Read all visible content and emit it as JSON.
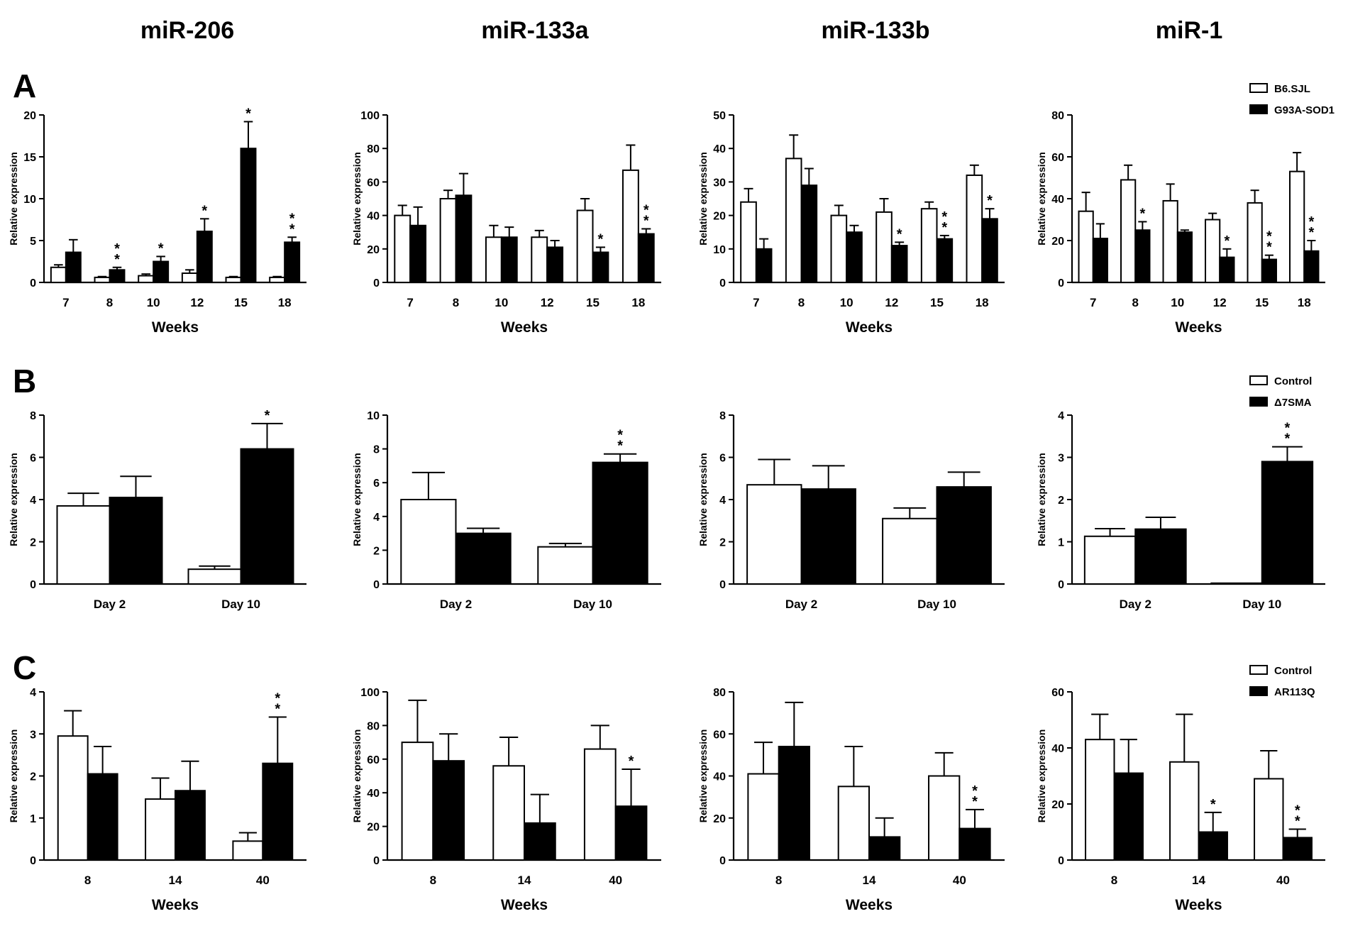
{
  "column_titles": [
    "miR-206",
    "miR-133a",
    "miR-133b",
    "miR-1"
  ],
  "row_labels": [
    "A",
    "B",
    "C"
  ],
  "legends": [
    {
      "items": [
        "B6.SJL",
        "G93A-SOD1"
      ]
    },
    {
      "items": [
        "Control",
        "Δ7SMA"
      ]
    },
    {
      "items": [
        "Control",
        "AR113Q"
      ]
    }
  ],
  "colors": {
    "series_open": "#ffffff",
    "series_filled": "#000000",
    "axis": "#000000"
  },
  "chart_data": [
    {
      "id": "A-miR-206",
      "type": "bar",
      "title": "miR-206",
      "xlabel": "Weeks",
      "ylabel": "Relative expression",
      "categories": [
        "7",
        "8",
        "10",
        "12",
        "15",
        "18"
      ],
      "ylim": [
        0,
        20
      ],
      "yticks": [
        0,
        5,
        10,
        15,
        20
      ],
      "series": [
        {
          "name": "B6.SJL",
          "values": [
            1.8,
            0.6,
            0.8,
            1.1,
            0.6,
            0.6
          ],
          "errors": [
            0.3,
            0.1,
            0.2,
            0.4,
            0.1,
            0.1
          ]
        },
        {
          "name": "G93A-SOD1",
          "values": [
            3.6,
            1.5,
            2.5,
            6.1,
            16.0,
            4.8
          ],
          "errors": [
            1.5,
            0.3,
            0.6,
            1.5,
            3.2,
            0.6
          ]
        }
      ],
      "sig": [
        "",
        "**",
        "*",
        "*",
        "*",
        "**"
      ]
    },
    {
      "id": "A-miR-133a",
      "type": "bar",
      "title": "miR-133a",
      "xlabel": "Weeks",
      "ylabel": "Relative expression",
      "categories": [
        "7",
        "8",
        "10",
        "12",
        "15",
        "18"
      ],
      "ylim": [
        0,
        100
      ],
      "yticks": [
        0,
        20,
        40,
        60,
        80,
        100
      ],
      "series": [
        {
          "name": "B6.SJL",
          "values": [
            40,
            50,
            27,
            27,
            43,
            67
          ],
          "errors": [
            6,
            5,
            7,
            4,
            7,
            15
          ]
        },
        {
          "name": "G93A-SOD1",
          "values": [
            34,
            52,
            27,
            21,
            18,
            29
          ],
          "errors": [
            11,
            13,
            6,
            4,
            3,
            3
          ]
        }
      ],
      "sig": [
        "",
        "",
        "",
        "",
        "*",
        "**"
      ]
    },
    {
      "id": "A-miR-133b",
      "type": "bar",
      "title": "miR-133b",
      "xlabel": "Weeks",
      "ylabel": "Relative expression",
      "categories": [
        "7",
        "8",
        "10",
        "12",
        "15",
        "18"
      ],
      "ylim": [
        0,
        50
      ],
      "yticks": [
        0,
        10,
        20,
        30,
        40,
        50
      ],
      "series": [
        {
          "name": "B6.SJL",
          "values": [
            24,
            37,
            20,
            21,
            22,
            32
          ],
          "errors": [
            4,
            7,
            3,
            4,
            2,
            3
          ]
        },
        {
          "name": "G93A-SOD1",
          "values": [
            10,
            29,
            15,
            11,
            13,
            19
          ],
          "errors": [
            3,
            5,
            2,
            1,
            1,
            3
          ]
        }
      ],
      "sig": [
        "",
        "",
        "",
        "*",
        "**",
        "*"
      ]
    },
    {
      "id": "A-miR-1",
      "type": "bar",
      "title": "miR-1",
      "xlabel": "Weeks",
      "ylabel": "Relative expression",
      "categories": [
        "7",
        "8",
        "10",
        "12",
        "15",
        "18"
      ],
      "ylim": [
        0,
        80
      ],
      "yticks": [
        0,
        20,
        40,
        60,
        80
      ],
      "series": [
        {
          "name": "B6.SJL",
          "values": [
            34,
            49,
            39,
            30,
            38,
            53
          ],
          "errors": [
            9,
            7,
            8,
            3,
            6,
            9
          ]
        },
        {
          "name": "G93A-SOD1",
          "values": [
            21,
            25,
            24,
            12,
            11,
            15
          ],
          "errors": [
            7,
            4,
            1,
            4,
            2,
            5
          ]
        }
      ],
      "sig": [
        "",
        "*",
        "",
        "*",
        "**",
        "**"
      ]
    },
    {
      "id": "B-miR-206",
      "type": "bar",
      "xlabel": "",
      "ylabel": "Relative expression",
      "categories": [
        "Day 2",
        "Day 10"
      ],
      "ylim": [
        0,
        8
      ],
      "yticks": [
        0,
        2,
        4,
        6,
        8
      ],
      "series": [
        {
          "name": "Control",
          "values": [
            3.7,
            0.7
          ],
          "errors": [
            0.6,
            0.15
          ]
        },
        {
          "name": "Δ7SMA",
          "values": [
            4.1,
            6.4
          ],
          "errors": [
            1.0,
            1.2
          ]
        }
      ],
      "sig": [
        "",
        "*"
      ]
    },
    {
      "id": "B-miR-133a",
      "type": "bar",
      "xlabel": "",
      "ylabel": "Relative expression",
      "categories": [
        "Day 2",
        "Day 10"
      ],
      "ylim": [
        0,
        10
      ],
      "yticks": [
        0,
        2,
        4,
        6,
        8,
        10
      ],
      "series": [
        {
          "name": "Control",
          "values": [
            5.0,
            2.2
          ],
          "errors": [
            1.6,
            0.2
          ]
        },
        {
          "name": "Δ7SMA",
          "values": [
            3.0,
            7.2
          ],
          "errors": [
            0.3,
            0.5
          ]
        }
      ],
      "sig": [
        "",
        "**"
      ]
    },
    {
      "id": "B-miR-133b",
      "type": "bar",
      "xlabel": "",
      "ylabel": "Relative expression",
      "categories": [
        "Day 2",
        "Day 10"
      ],
      "ylim": [
        0,
        8
      ],
      "yticks": [
        0,
        2,
        4,
        6,
        8
      ],
      "series": [
        {
          "name": "Control",
          "values": [
            4.7,
            3.1
          ],
          "errors": [
            1.2,
            0.5
          ]
        },
        {
          "name": "Δ7SMA",
          "values": [
            4.5,
            4.6
          ],
          "errors": [
            1.1,
            0.7
          ]
        }
      ],
      "sig": [
        "",
        ""
      ]
    },
    {
      "id": "B-miR-1",
      "type": "bar",
      "xlabel": "",
      "ylabel": "Relative expression",
      "categories": [
        "Day 2",
        "Day 10"
      ],
      "ylim": [
        0,
        4
      ],
      "yticks": [
        0,
        1,
        2,
        3,
        4
      ],
      "series": [
        {
          "name": "Control",
          "values": [
            1.13,
            0.02
          ],
          "errors": [
            0.18,
            0
          ]
        },
        {
          "name": "Δ7SMA",
          "values": [
            1.3,
            2.9
          ],
          "errors": [
            0.28,
            0.35
          ]
        }
      ],
      "sig": [
        "",
        "**"
      ]
    },
    {
      "id": "C-miR-206",
      "type": "bar",
      "xlabel": "Weeks",
      "ylabel": "Relative expression",
      "categories": [
        "8",
        "14",
        "40"
      ],
      "ylim": [
        0,
        4
      ],
      "yticks": [
        0,
        1,
        2,
        3,
        4
      ],
      "series": [
        {
          "name": "Control",
          "values": [
            2.95,
            1.45,
            0.45
          ],
          "errors": [
            0.6,
            0.5,
            0.2
          ]
        },
        {
          "name": "AR113Q",
          "values": [
            2.05,
            1.65,
            2.3
          ],
          "errors": [
            0.65,
            0.7,
            1.1
          ]
        }
      ],
      "sig": [
        "",
        "",
        "**"
      ]
    },
    {
      "id": "C-miR-133a",
      "type": "bar",
      "xlabel": "Weeks",
      "ylabel": "Relative expression",
      "categories": [
        "8",
        "14",
        "40"
      ],
      "ylim": [
        0,
        100
      ],
      "yticks": [
        0,
        20,
        40,
        60,
        80,
        100
      ],
      "series": [
        {
          "name": "Control",
          "values": [
            70,
            56,
            66
          ],
          "errors": [
            25,
            17,
            14
          ]
        },
        {
          "name": "AR113Q",
          "values": [
            59,
            22,
            32
          ],
          "errors": [
            16,
            17,
            22
          ]
        }
      ],
      "sig": [
        "",
        "",
        "*"
      ]
    },
    {
      "id": "C-miR-133b",
      "type": "bar",
      "xlabel": "Weeks",
      "ylabel": "Relative expression",
      "categories": [
        "8",
        "14",
        "40"
      ],
      "ylim": [
        0,
        80
      ],
      "yticks": [
        0,
        20,
        40,
        60,
        80
      ],
      "series": [
        {
          "name": "Control",
          "values": [
            41,
            35,
            40
          ],
          "errors": [
            15,
            19,
            11
          ]
        },
        {
          "name": "AR113Q",
          "values": [
            54,
            11,
            15
          ],
          "errors": [
            21,
            9,
            9
          ]
        }
      ],
      "sig": [
        "",
        "",
        "**"
      ]
    },
    {
      "id": "C-miR-1",
      "type": "bar",
      "xlabel": "Weeks",
      "ylabel": "Relative expression",
      "categories": [
        "8",
        "14",
        "40"
      ],
      "ylim": [
        0,
        60
      ],
      "yticks": [
        0,
        20,
        40,
        60
      ],
      "series": [
        {
          "name": "Control",
          "values": [
            43,
            35,
            29
          ],
          "errors": [
            9,
            17,
            10
          ]
        },
        {
          "name": "AR113Q",
          "values": [
            31,
            10,
            8
          ],
          "errors": [
            12,
            7,
            3
          ]
        }
      ],
      "sig": [
        "",
        "*",
        "**"
      ]
    }
  ]
}
